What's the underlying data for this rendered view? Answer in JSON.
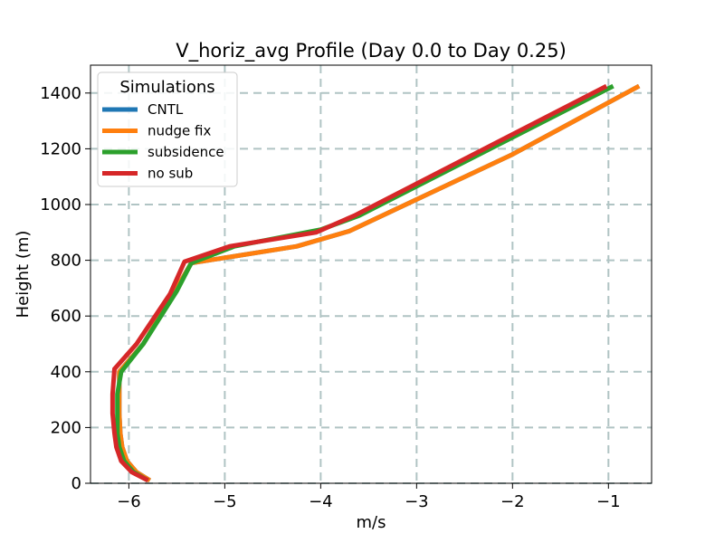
{
  "chart_data": {
    "type": "line",
    "title": "V_horiz_avg Profile (Day 0.0 to Day 0.25)",
    "xlabel": "m/s",
    "ylabel": "Height (m)",
    "xlim": [
      -6.4,
      -0.55
    ],
    "ylim": [
      0,
      1500
    ],
    "xticks": [
      -6,
      -5,
      -4,
      -3,
      -2,
      -1
    ],
    "xtick_labels": [
      "−6",
      "−5",
      "−4",
      "−3",
      "−2",
      "−1"
    ],
    "yticks": [
      0,
      200,
      400,
      600,
      800,
      1000,
      1200,
      1400
    ],
    "ytick_labels": [
      "0",
      "200",
      "400",
      "600",
      "800",
      "1000",
      "1200",
      "1400"
    ],
    "grid": true,
    "legend": {
      "title": "Simulations",
      "placement": "top-left"
    },
    "series": [
      {
        "name": "CNTL",
        "color": "#1f77b4",
        "x": [
          -5.78,
          -5.92,
          -6.02,
          -6.07,
          -6.09,
          -6.1,
          -6.1,
          -6.1,
          -5.85,
          -5.52,
          -5.35,
          -4.25,
          -3.7,
          -2.0,
          -0.68
        ],
        "y": [
          10,
          40,
          80,
          130,
          180,
          250,
          320,
          400,
          500,
          690,
          790,
          850,
          905,
          1180,
          1425
        ]
      },
      {
        "name": "nudge fix",
        "color": "#ff7f0e",
        "x": [
          -5.78,
          -5.92,
          -6.02,
          -6.07,
          -6.09,
          -6.1,
          -6.1,
          -6.1,
          -5.85,
          -5.52,
          -5.35,
          -4.25,
          -3.7,
          -2.0,
          -0.68
        ],
        "y": [
          10,
          40,
          80,
          130,
          180,
          250,
          320,
          400,
          500,
          690,
          790,
          850,
          905,
          1180,
          1425
        ]
      },
      {
        "name": "subsidence",
        "color": "#2ca02c",
        "x": [
          -5.8,
          -5.95,
          -6.05,
          -6.1,
          -6.12,
          -6.12,
          -6.12,
          -6.08,
          -5.85,
          -5.5,
          -5.35,
          -4.9,
          -4.0,
          -3.6,
          -0.95
        ],
        "y": [
          10,
          40,
          80,
          130,
          180,
          250,
          320,
          400,
          500,
          690,
          790,
          850,
          910,
          960,
          1425
        ]
      },
      {
        "name": "no sub",
        "color": "#d62728",
        "x": [
          -5.8,
          -5.97,
          -6.08,
          -6.13,
          -6.15,
          -6.17,
          -6.17,
          -6.15,
          -5.92,
          -5.57,
          -5.42,
          -4.95,
          -4.05,
          -3.65,
          -1.02
        ],
        "y": [
          10,
          40,
          80,
          130,
          180,
          250,
          320,
          410,
          500,
          680,
          795,
          850,
          900,
          960,
          1425
        ]
      }
    ]
  }
}
